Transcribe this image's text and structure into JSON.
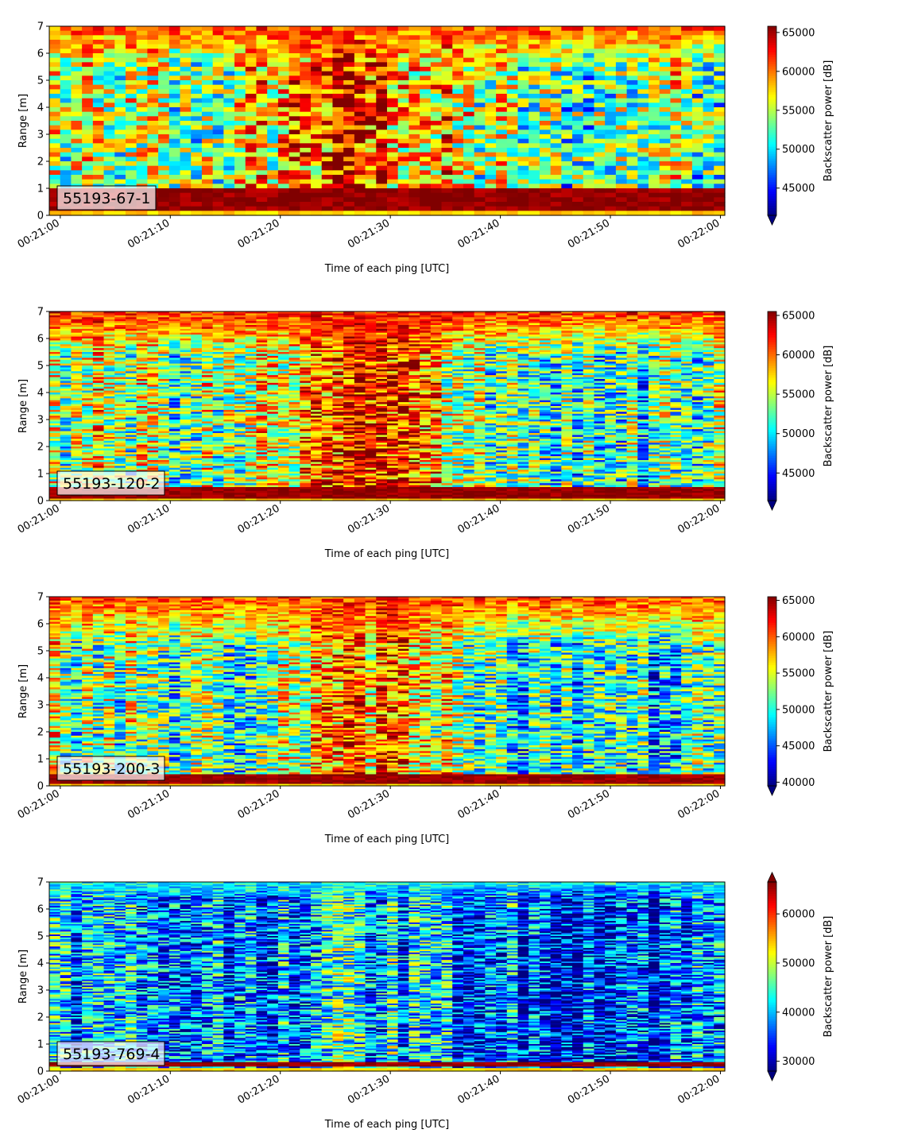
{
  "figure": {
    "xlabel": "Time of each ping [UTC]",
    "ylabel": "Range [m]",
    "colorbar_label": "Backscatter power [dB]",
    "colormap": "jet"
  },
  "chart_data": [
    {
      "type": "heatmap",
      "label": "55193-67-1",
      "x_ticks": [
        "00:21:00",
        "00:21:10",
        "00:21:20",
        "00:21:30",
        "00:21:40",
        "00:21:50",
        "00:22:00"
      ],
      "y_ticks": [
        "0",
        "1",
        "2",
        "3",
        "4",
        "5",
        "6",
        "7"
      ],
      "ylim": [
        0,
        7
      ],
      "xlim_seconds": [
        -1,
        60.4
      ],
      "color_range": [
        41500,
        65800
      ],
      "colorbar_ticks": [
        "45000",
        "50000",
        "55000",
        "60000",
        "65000"
      ],
      "colorbar_extend": "min",
      "columns": 62,
      "bins_per_meter": 6,
      "mean_level": [
        0.55,
        0.52,
        0.5,
        0.55,
        0.75,
        0.85,
        0.7,
        0.55,
        0.45,
        0.45,
        0.55,
        0.5
      ],
      "top_level": 0.8,
      "top_ramp_m": 1.5,
      "bottom_band_m": [
        0.25,
        1.05
      ],
      "surface_line_m": 0.2
    },
    {
      "type": "heatmap",
      "label": "55193-120-2",
      "x_ticks": [
        "00:21:00",
        "00:21:10",
        "00:21:20",
        "00:21:30",
        "00:21:40",
        "00:21:50",
        "00:22:00"
      ],
      "y_ticks": [
        "0",
        "1",
        "2",
        "3",
        "4",
        "5",
        "6",
        "7"
      ],
      "ylim": [
        0,
        7
      ],
      "xlim_seconds": [
        -1,
        60.4
      ],
      "color_range": [
        41500,
        65500
      ],
      "colorbar_ticks": [
        "45000",
        "50000",
        "55000",
        "60000",
        "65000"
      ],
      "colorbar_extend": "min",
      "columns": 62,
      "bins_per_meter": 14,
      "mean_level": [
        0.58,
        0.55,
        0.5,
        0.5,
        0.65,
        0.85,
        0.75,
        0.55,
        0.45,
        0.4,
        0.42,
        0.48
      ],
      "top_level": 0.85,
      "top_ramp_m": 1.6,
      "bottom_band_m": [
        0.1,
        0.5
      ],
      "surface_line_m": 0.1
    },
    {
      "type": "heatmap",
      "label": "55193-200-3",
      "x_ticks": [
        "00:21:00",
        "00:21:10",
        "00:21:20",
        "00:21:30",
        "00:21:40",
        "00:21:50",
        "00:22:00"
      ],
      "y_ticks": [
        "0",
        "1",
        "2",
        "3",
        "4",
        "5",
        "6",
        "7"
      ],
      "ylim": [
        0,
        7
      ],
      "xlim_seconds": [
        -1,
        60.4
      ],
      "color_range": [
        39500,
        65500
      ],
      "colorbar_ticks": [
        "40000",
        "45000",
        "50000",
        "55000",
        "60000",
        "65000"
      ],
      "colorbar_extend": "min",
      "columns": 62,
      "bins_per_meter": 14,
      "mean_level": [
        0.55,
        0.5,
        0.45,
        0.45,
        0.55,
        0.75,
        0.68,
        0.5,
        0.4,
        0.35,
        0.38,
        0.42
      ],
      "top_level": 0.82,
      "top_ramp_m": 1.8,
      "bottom_band_m": [
        0.1,
        0.45
      ],
      "surface_line_m": 0.1
    },
    {
      "type": "heatmap",
      "label": "55193-769-4",
      "x_ticks": [
        "00:21:00",
        "00:21:10",
        "00:21:20",
        "00:21:30",
        "00:21:40",
        "00:21:50",
        "00:22:00"
      ],
      "y_ticks": [
        "0",
        "1",
        "2",
        "3",
        "4",
        "5",
        "6",
        "7"
      ],
      "ylim": [
        0,
        7
      ],
      "xlim_seconds": [
        -1,
        60.4
      ],
      "color_range": [
        28000,
        66500
      ],
      "colorbar_ticks": [
        "30000",
        "40000",
        "50000",
        "60000"
      ],
      "colorbar_extend": "both",
      "columns": 62,
      "bins_per_meter": 18,
      "mean_level": [
        0.3,
        0.28,
        0.27,
        0.26,
        0.3,
        0.36,
        0.3,
        0.24,
        0.2,
        0.19,
        0.22,
        0.25
      ],
      "top_level": 0.4,
      "top_ramp_m": 0.6,
      "bottom_band_m": [
        0.15,
        0.35
      ],
      "surface_line_m": 0.1
    }
  ]
}
